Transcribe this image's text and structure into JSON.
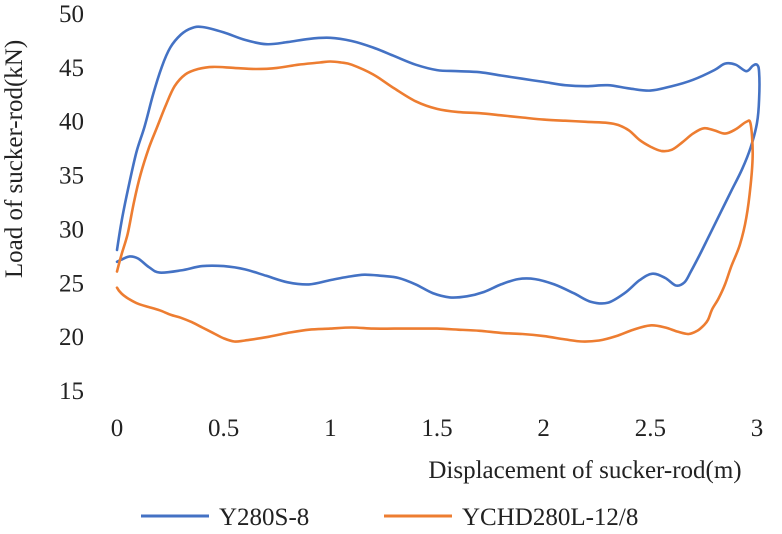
{
  "chart_data": {
    "type": "line",
    "title": "",
    "xlabel": "Displacement of sucker-rod(m)",
    "ylabel": "Load of sucker-rod(kN)",
    "xlim": [
      0,
      3
    ],
    "ylim": [
      15,
      50
    ],
    "x_ticks": [
      "0",
      "0.5",
      "1",
      "1.5",
      "2",
      "2.5",
      "3"
    ],
    "y_ticks": [
      "15",
      "20",
      "25",
      "30",
      "35",
      "40",
      "45",
      "50"
    ],
    "grid": false,
    "legend_position": "bottom",
    "series": [
      {
        "name": "Y280S-8",
        "color": "#4472C4",
        "x": [
          0,
          0.02,
          0.05,
          0.09,
          0.13,
          0.17,
          0.21,
          0.25,
          0.3,
          0.35,
          0.4,
          0.5,
          0.6,
          0.7,
          0.8,
          0.9,
          1.0,
          1.1,
          1.2,
          1.3,
          1.4,
          1.5,
          1.6,
          1.7,
          1.8,
          1.9,
          2.0,
          2.1,
          2.2,
          2.3,
          2.4,
          2.5,
          2.6,
          2.7,
          2.8,
          2.85,
          2.9,
          2.95,
          2.98,
          3.0,
          3.01,
          3.01,
          3.0,
          2.97,
          2.93,
          2.88,
          2.83,
          2.78,
          2.73,
          2.69,
          2.66,
          2.62,
          2.57,
          2.51,
          2.45,
          2.38,
          2.3,
          2.22,
          2.14,
          2.05,
          1.96,
          1.88,
          1.8,
          1.72,
          1.64,
          1.56,
          1.48,
          1.4,
          1.32,
          1.24,
          1.16,
          1.08,
          1.0,
          0.9,
          0.8,
          0.7,
          0.6,
          0.5,
          0.4,
          0.3,
          0.2,
          0.15,
          0.1,
          0.06,
          0.02,
          0
        ],
        "y": [
          28.0,
          30.5,
          33.5,
          37.0,
          39.5,
          42.5,
          45.0,
          46.8,
          48.0,
          48.6,
          48.7,
          48.2,
          47.5,
          47.1,
          47.3,
          47.6,
          47.7,
          47.4,
          46.8,
          46.0,
          45.2,
          44.7,
          44.6,
          44.5,
          44.2,
          43.9,
          43.6,
          43.3,
          43.2,
          43.3,
          43.0,
          42.8,
          43.2,
          43.8,
          44.7,
          45.3,
          45.2,
          44.6,
          45.1,
          45.2,
          44.5,
          42.0,
          39.8,
          37.5,
          35.5,
          33.5,
          31.5,
          29.5,
          27.5,
          26.0,
          25.0,
          24.7,
          25.4,
          25.8,
          25.2,
          24.0,
          23.1,
          23.2,
          24.0,
          24.8,
          25.3,
          25.3,
          24.8,
          24.1,
          23.7,
          23.6,
          24.0,
          24.8,
          25.4,
          25.6,
          25.7,
          25.5,
          25.2,
          24.8,
          25.0,
          25.6,
          26.2,
          26.5,
          26.5,
          26.1,
          25.9,
          26.4,
          27.2,
          27.4,
          27.1,
          26.9
        ]
      },
      {
        "name": "YCHD280L-12/8",
        "color": "#ED7D31",
        "x": [
          0,
          0.02,
          0.05,
          0.08,
          0.11,
          0.15,
          0.19,
          0.23,
          0.27,
          0.32,
          0.38,
          0.45,
          0.55,
          0.65,
          0.75,
          0.85,
          0.95,
          1.0,
          1.05,
          1.1,
          1.2,
          1.3,
          1.4,
          1.5,
          1.6,
          1.7,
          1.8,
          1.9,
          2.0,
          2.1,
          2.2,
          2.3,
          2.35,
          2.4,
          2.45,
          2.5,
          2.55,
          2.6,
          2.65,
          2.7,
          2.75,
          2.8,
          2.85,
          2.9,
          2.95,
          2.97,
          2.98,
          2.97,
          2.95,
          2.92,
          2.88,
          2.85,
          2.82,
          2.79,
          2.77,
          2.75,
          2.72,
          2.68,
          2.63,
          2.57,
          2.5,
          2.42,
          2.34,
          2.26,
          2.18,
          2.1,
          2.0,
          1.9,
          1.8,
          1.7,
          1.6,
          1.5,
          1.4,
          1.3,
          1.2,
          1.1,
          1.0,
          0.9,
          0.8,
          0.7,
          0.6,
          0.55,
          0.5,
          0.45,
          0.4,
          0.35,
          0.3,
          0.25,
          0.2,
          0.15,
          0.1,
          0.06,
          0.03,
          0.01,
          0
        ],
        "y": [
          26.0,
          27.5,
          29.5,
          32.5,
          35.0,
          37.5,
          39.5,
          41.5,
          43.2,
          44.3,
          44.8,
          45.0,
          44.9,
          44.8,
          44.9,
          45.2,
          45.4,
          45.5,
          45.4,
          45.2,
          44.3,
          43.0,
          41.8,
          41.1,
          40.8,
          40.7,
          40.5,
          40.3,
          40.1,
          40.0,
          39.9,
          39.8,
          39.6,
          39.1,
          38.2,
          37.6,
          37.2,
          37.3,
          38.0,
          38.8,
          39.3,
          39.1,
          38.8,
          39.2,
          39.9,
          39.7,
          37.0,
          34.0,
          31.0,
          28.5,
          26.5,
          24.8,
          23.5,
          22.5,
          21.5,
          21.0,
          20.5,
          20.2,
          20.4,
          20.8,
          21.0,
          20.6,
          20.0,
          19.6,
          19.5,
          19.7,
          20.0,
          20.2,
          20.3,
          20.5,
          20.6,
          20.7,
          20.7,
          20.7,
          20.7,
          20.8,
          20.7,
          20.6,
          20.3,
          19.9,
          19.6,
          19.5,
          19.8,
          20.3,
          20.8,
          21.3,
          21.7,
          22.0,
          22.4,
          22.7,
          23.0,
          23.4,
          23.8,
          24.2,
          24.5
        ]
      }
    ]
  }
}
